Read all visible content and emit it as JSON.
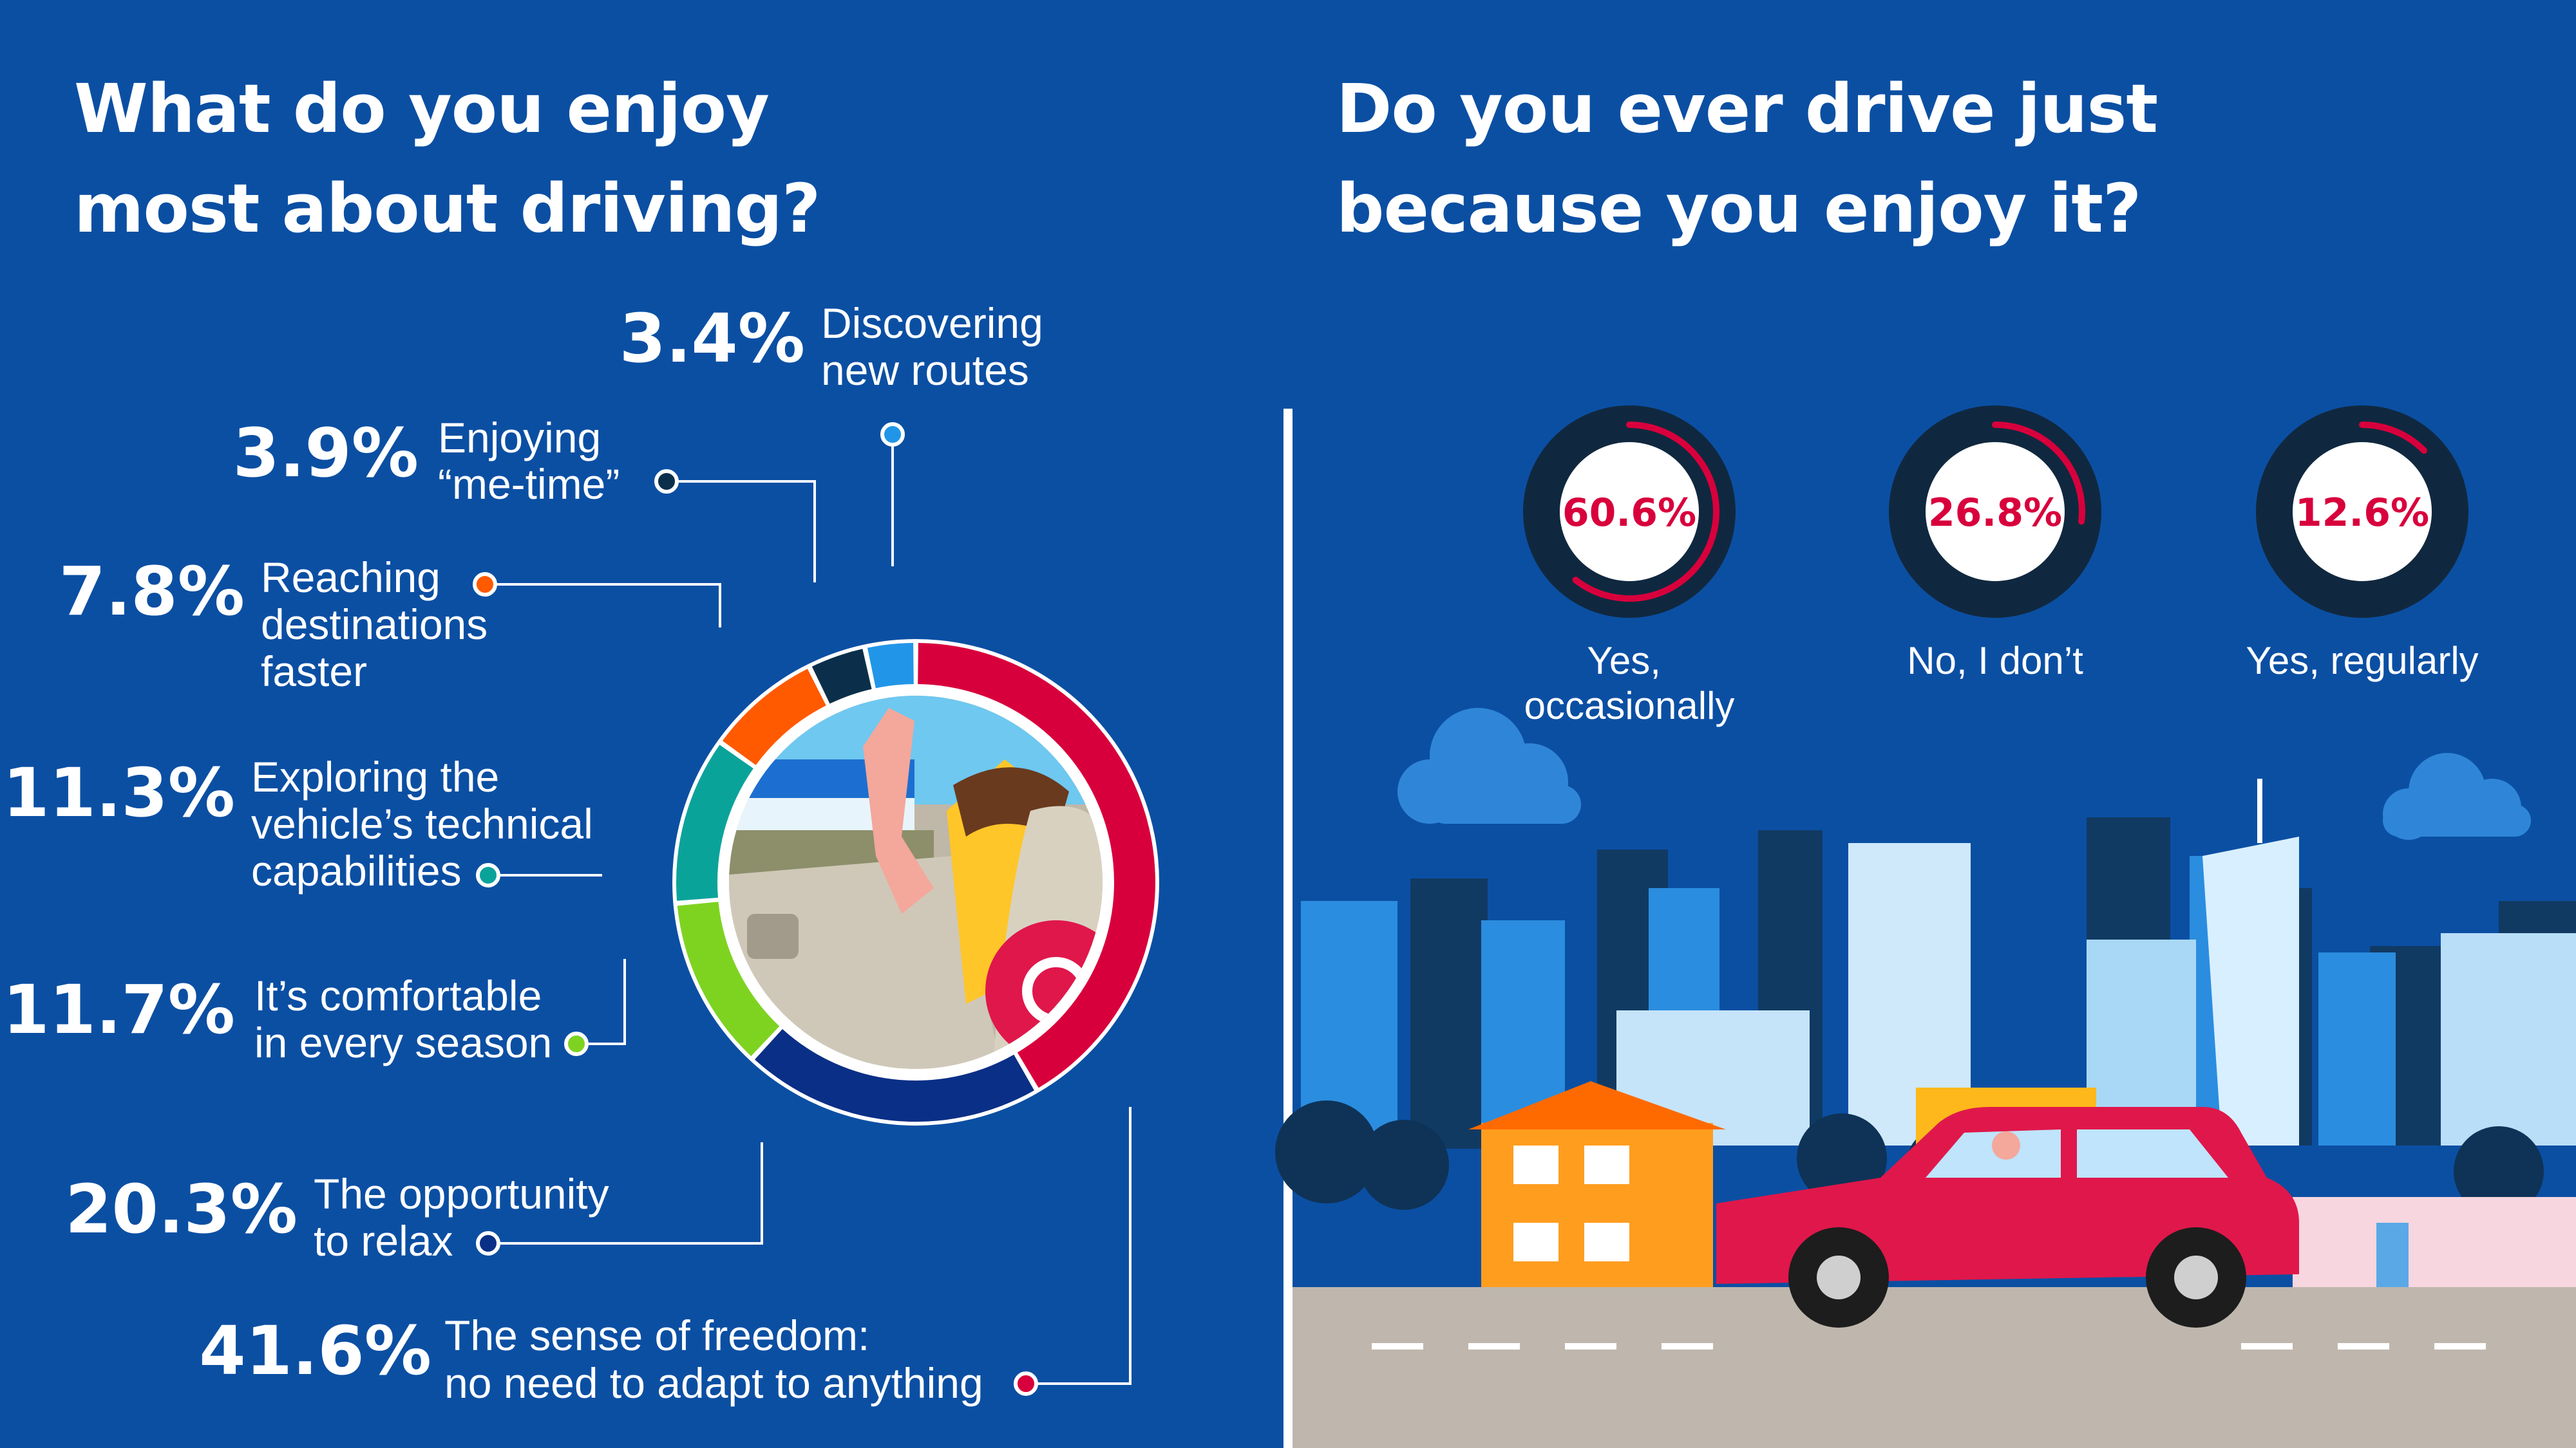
{
  "left": {
    "title_lines": [
      "What do you enjoy",
      "most about driving?"
    ]
  },
  "right": {
    "title_lines": [
      "Do you ever drive just",
      "because you enjoy it?"
    ]
  },
  "chart_data": [
    {
      "type": "pie",
      "style": "donut",
      "title": "What do you enjoy most about driving?",
      "slices": [
        {
          "value": 41.6,
          "label": "41.6%",
          "text": [
            "The sense of freedom:",
            "no need to adapt to anything"
          ],
          "color": "#d8003c"
        },
        {
          "value": 20.3,
          "label": "20.3%",
          "text": [
            "The opportunity",
            "to relax"
          ],
          "color": "#0a2f86"
        },
        {
          "value": 11.7,
          "label": "11.7%",
          "text": [
            "It’s comfortable",
            "in every season"
          ],
          "color": "#7ed321"
        },
        {
          "value": 11.3,
          "label": "11.3%",
          "text": [
            "Exploring the",
            "vehicle’s technical",
            "capabilities"
          ],
          "color": "#0aa39a"
        },
        {
          "value": 7.8,
          "label": "7.8%",
          "text": [
            "Reaching",
            "destinations",
            "faster"
          ],
          "color": "#ff5a00"
        },
        {
          "value": 3.9,
          "label": "3.9%",
          "text": [
            "Enjoying",
            "“me-time”"
          ],
          "color": "#0b2f4a"
        },
        {
          "value": 3.4,
          "label": "3.4%",
          "text": [
            "Discovering",
            "new routes"
          ],
          "color": "#2196e8"
        }
      ]
    },
    {
      "type": "pie",
      "style": "progress-rings",
      "title": "Do you ever drive just because you enjoy it?",
      "rings": [
        {
          "value": 60.6,
          "label": "60.6%",
          "text": [
            "Yes,",
            "occasionally"
          ]
        },
        {
          "value": 26.8,
          "label": "26.8%",
          "text": [
            "No, I don’t"
          ]
        },
        {
          "value": 12.6,
          "label": "12.6%",
          "text": [
            "Yes, regularly"
          ]
        }
      ],
      "colors": {
        "ring_bg": "#10283f",
        "ring_fill": "#d8003c",
        "center": "#ffffff",
        "text": "#d8003c"
      }
    }
  ]
}
